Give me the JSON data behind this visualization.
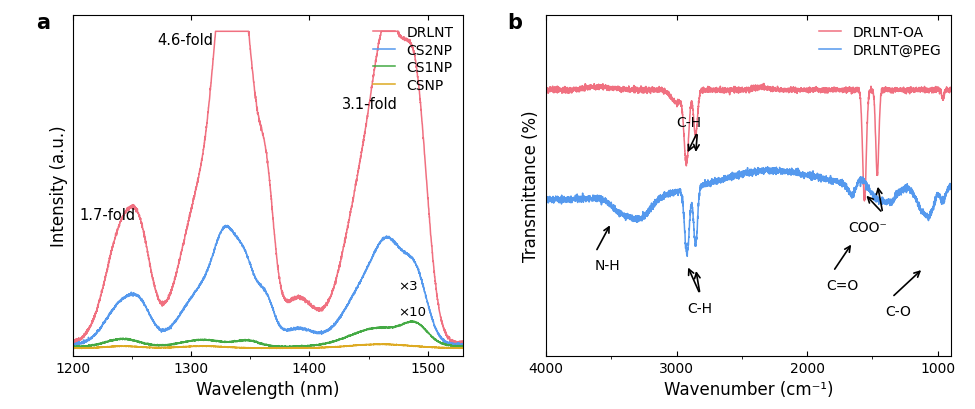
{
  "panel_a": {
    "xlabel": "Wavelength (nm)",
    "ylabel": "Intensity (a.u.)",
    "xlim": [
      1200,
      1530
    ],
    "legend": [
      "DRLNT",
      "CS2NP",
      "CS1NP",
      "CSNP"
    ],
    "colors": [
      "#f07080",
      "#5599ee",
      "#44aa44",
      "#ddaa22"
    ]
  },
  "panel_b": {
    "xlabel": "Wavenumber (cm⁻¹)",
    "ylabel": "Transmittance (%)",
    "xlim": [
      4000,
      900
    ],
    "legend": [
      "DRLNT-OA",
      "DRLNT@PEG"
    ],
    "colors": [
      "#f07080",
      "#5599ee"
    ]
  }
}
